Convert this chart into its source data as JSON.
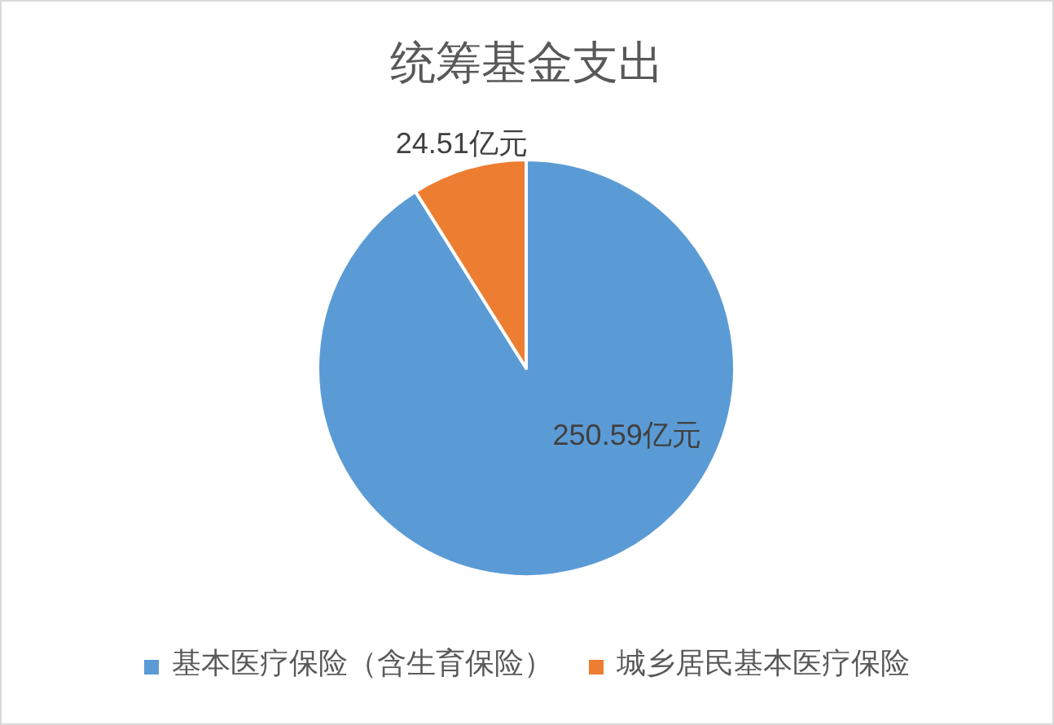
{
  "chart_data": {
    "type": "pie",
    "title": "统筹基金支出",
    "categories": [
      "基本医疗保险（含生育保险）",
      "城乡居民基本医疗保险"
    ],
    "values": [
      250.59,
      24.51
    ],
    "colors": [
      "#5b9bd5",
      "#ed7d31"
    ],
    "value_labels": [
      "250.59亿元",
      "24.51亿元"
    ],
    "legend": "bottom"
  }
}
